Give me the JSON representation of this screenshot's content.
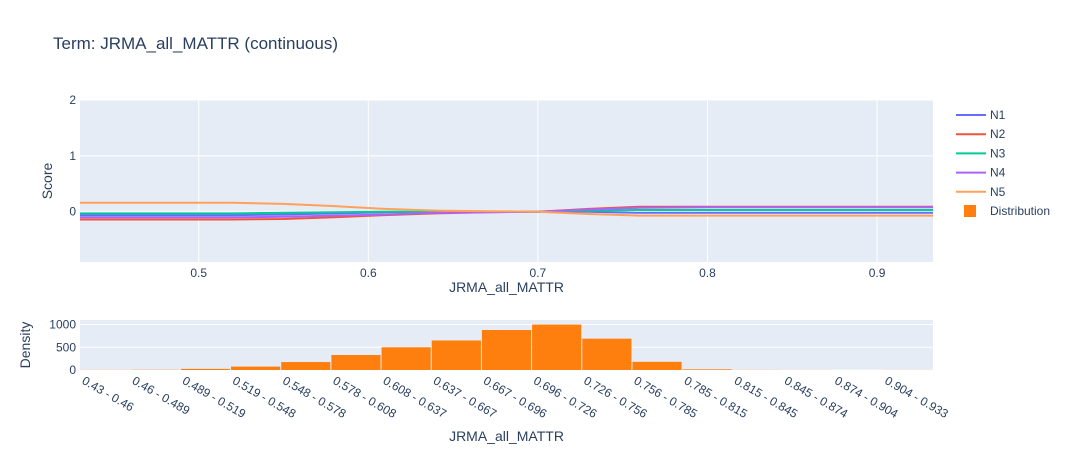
{
  "title": "Term: JRMA_all_MATTR (continuous)",
  "colors": {
    "plot_bg": "#E5ECF6",
    "grid": "#ffffff",
    "text": "#2a3f5f",
    "N1": "#636EFA",
    "N2": "#EF553B",
    "N3": "#00CC96",
    "N4": "#AB63FA",
    "N5": "#FFA15A",
    "distribution": "#FF7F0E"
  },
  "legend": {
    "placement": "top-right",
    "items": [
      {
        "label": "N1",
        "kind": "line",
        "color": "#636EFA"
      },
      {
        "label": "N2",
        "kind": "line",
        "color": "#EF553B"
      },
      {
        "label": "N3",
        "kind": "line",
        "color": "#00CC96"
      },
      {
        "label": "N4",
        "kind": "line",
        "color": "#AB63FA"
      },
      {
        "label": "N5",
        "kind": "line",
        "color": "#FFA15A"
      },
      {
        "label": "Distribution",
        "kind": "square",
        "color": "#FF7F0E"
      }
    ]
  },
  "chart_data": [
    {
      "type": "line",
      "xlabel": "JRMA_all_MATTR",
      "ylabel": "Score",
      "xlim": [
        0.43,
        0.933
      ],
      "ylim": [
        -0.9,
        2
      ],
      "xticks": [
        0.5,
        0.6,
        0.7,
        0.8,
        0.9
      ],
      "xtick_labels": [
        "0.5",
        "0.6",
        "0.7",
        "0.8",
        "0.9"
      ],
      "yticks": [
        0,
        1,
        2
      ],
      "ytick_labels": [
        "0",
        "1",
        "2"
      ],
      "grid": true,
      "series": [
        {
          "name": "N1",
          "color": "#636EFA",
          "x": [
            0.43,
            0.52,
            0.55,
            0.58,
            0.61,
            0.64,
            0.67,
            0.7,
            0.73,
            0.76,
            0.8,
            0.85,
            0.933
          ],
          "y": [
            -0.06,
            -0.06,
            -0.05,
            -0.03,
            -0.01,
            0.0,
            0.0,
            0.0,
            0.0,
            -0.02,
            -0.02,
            -0.02,
            -0.02
          ]
        },
        {
          "name": "N2",
          "color": "#EF553B",
          "x": [
            0.43,
            0.52,
            0.55,
            0.58,
            0.61,
            0.64,
            0.67,
            0.7,
            0.73,
            0.76,
            0.8,
            0.85,
            0.933
          ],
          "y": [
            -0.14,
            -0.14,
            -0.13,
            -0.1,
            -0.06,
            -0.03,
            -0.01,
            0.0,
            0.05,
            0.09,
            0.09,
            0.09,
            0.09
          ]
        },
        {
          "name": "N3",
          "color": "#00CC96",
          "x": [
            0.43,
            0.52,
            0.55,
            0.58,
            0.61,
            0.64,
            0.67,
            0.7,
            0.73,
            0.76,
            0.8,
            0.85,
            0.933
          ],
          "y": [
            -0.03,
            -0.03,
            -0.02,
            -0.01,
            0.0,
            0.0,
            0.0,
            0.0,
            0.02,
            0.03,
            0.03,
            0.03,
            0.03
          ]
        },
        {
          "name": "N4",
          "color": "#AB63FA",
          "x": [
            0.43,
            0.52,
            0.55,
            0.58,
            0.61,
            0.64,
            0.67,
            0.7,
            0.73,
            0.76,
            0.8,
            0.85,
            0.933
          ],
          "y": [
            -0.1,
            -0.1,
            -0.09,
            -0.07,
            -0.05,
            -0.02,
            -0.01,
            0.0,
            0.04,
            0.07,
            0.08,
            0.08,
            0.08
          ]
        },
        {
          "name": "N5",
          "color": "#FFA15A",
          "x": [
            0.43,
            0.52,
            0.55,
            0.58,
            0.61,
            0.64,
            0.67,
            0.7,
            0.73,
            0.76,
            0.8,
            0.85,
            0.933
          ],
          "y": [
            0.16,
            0.16,
            0.14,
            0.1,
            0.05,
            0.02,
            0.01,
            0.0,
            -0.04,
            -0.07,
            -0.07,
            -0.07,
            -0.07
          ]
        }
      ]
    },
    {
      "type": "bar",
      "xlabel": "JRMA_all_MATTR",
      "ylabel": "Density",
      "ylim": [
        0,
        1100
      ],
      "yticks": [
        0,
        500,
        1000
      ],
      "ytick_labels": [
        "0",
        "500",
        "1000"
      ],
      "grid": true,
      "categories": [
        "0.43 - 0.46",
        "0.46 - 0.489",
        "0.489 - 0.519",
        "0.519 - 0.548",
        "0.548 - 0.578",
        "0.578 - 0.608",
        "0.608 - 0.637",
        "0.637 - 0.667",
        "0.667 - 0.696",
        "0.696 - 0.726",
        "0.726 - 0.756",
        "0.756 - 0.785",
        "0.785 - 0.815",
        "0.815 - 0.845",
        "0.845 - 0.874",
        "0.874 - 0.904",
        "0.904 - 0.933"
      ],
      "values": [
        3,
        5,
        25,
        75,
        175,
        330,
        500,
        650,
        880,
        1000,
        690,
        180,
        15,
        3,
        2,
        1,
        2
      ],
      "color": "#FF7F0E"
    }
  ]
}
